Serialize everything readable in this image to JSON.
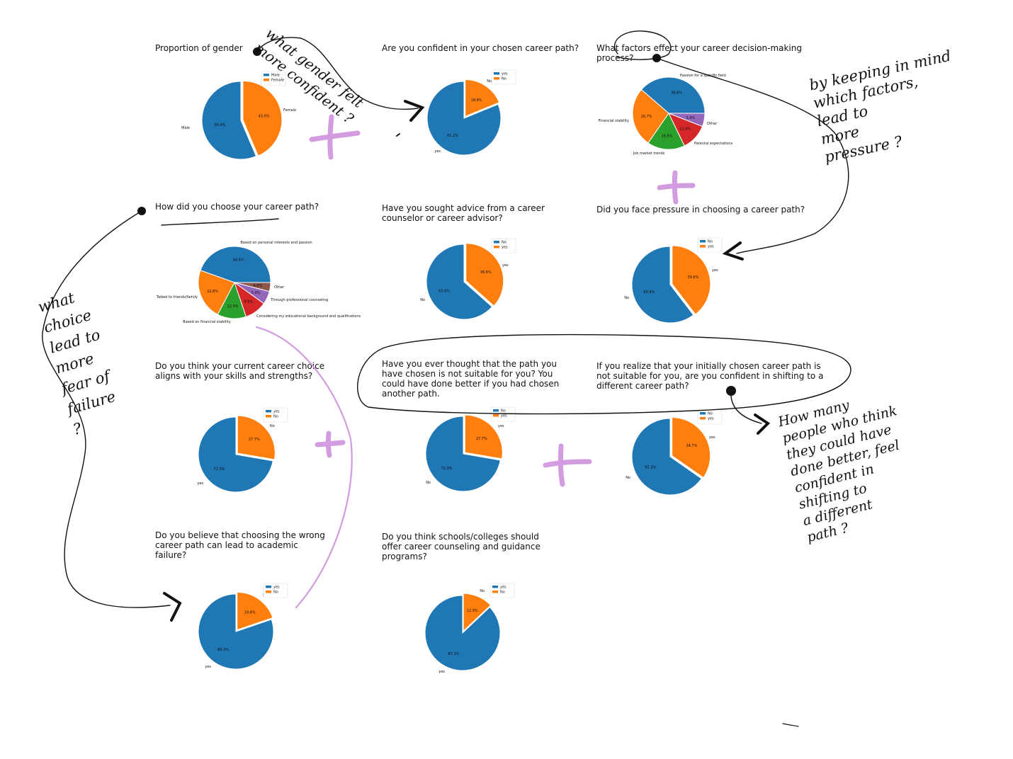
{
  "colors": {
    "blue": "#1f77b4",
    "orange": "#ff7f0e",
    "green": "#2ca02c",
    "red": "#d62728",
    "purple": "#9467bd",
    "brown": "#8c564b",
    "annotation_purple": "#d39be0",
    "ink": "#111111"
  },
  "notes": {
    "gender_confidence": "what gender felt more confident ?",
    "pressure_factors": "by keeping in mind\nwhich factors,\nlead to\nmore\npressure ?",
    "fear_of_failure": "what\nchoice\nlead to\nmore\nfear of\nfailure\n?",
    "shifting": "How many\npeople who think\nthey could have\ndone better, feel\nconfident in\nshifting to\na different\npath ?"
  },
  "chart_data": [
    {
      "id": "gender",
      "type": "pie",
      "title": "Proportion of gender",
      "legend": [
        "Male",
        "Female"
      ],
      "slices": [
        {
          "label": "Male",
          "value": 56.4,
          "pct": "56.4%",
          "color": "#1f77b4"
        },
        {
          "label": "Female",
          "value": 43.6,
          "pct": "43.6%",
          "color": "#ff7f0e"
        }
      ]
    },
    {
      "id": "confident",
      "type": "pie",
      "title": "Are you confident in your chosen career path?",
      "legend": [
        "yes",
        "No"
      ],
      "slices": [
        {
          "label": "yes",
          "value": 81.2,
          "pct": "81.2%",
          "color": "#1f77b4"
        },
        {
          "label": "No",
          "value": 18.8,
          "pct": "18.8%",
          "color": "#ff7f0e"
        }
      ]
    },
    {
      "id": "factors",
      "type": "pie",
      "title": "What factors effect your career decision-making process?",
      "legend": [],
      "slices": [
        {
          "label": "Passion for a specific field",
          "value": 38.6,
          "pct": "38.6%",
          "color": "#1f77b4"
        },
        {
          "label": "Financial stability",
          "value": 26.7,
          "pct": "26.7%",
          "color": "#ff7f0e"
        },
        {
          "label": "Job market trends",
          "value": 16.8,
          "pct": "16.8%",
          "color": "#2ca02c"
        },
        {
          "label": "Parental expectations",
          "value": 11.9,
          "pct": "11.9%",
          "color": "#d62728"
        },
        {
          "label": "Other",
          "value": 5.9,
          "pct": "5.9%",
          "color": "#9467bd"
        }
      ]
    },
    {
      "id": "how_choose",
      "type": "pie",
      "title": "How did you choose your career path?",
      "legend": [],
      "slices": [
        {
          "label": "Based on personal interests and passion",
          "value": 44.6,
          "pct": "44.6%",
          "color": "#1f77b4"
        },
        {
          "label": "Talked to friends/family",
          "value": 22.8,
          "pct": "22.8%",
          "color": "#ff7f0e"
        },
        {
          "label": "Based on financial stability",
          "value": 12.9,
          "pct": "12.9%",
          "color": "#2ca02c"
        },
        {
          "label": "Considering my educational background and qualifications",
          "value": 9.9,
          "pct": "9.9%",
          "color": "#d62728"
        },
        {
          "label": "Through professional counseling",
          "value": 5.9,
          "pct": "5.9%",
          "color": "#9467bd"
        },
        {
          "label": "Other",
          "value": 4.0,
          "pct": "4.0%",
          "color": "#8c564b"
        }
      ]
    },
    {
      "id": "advice",
      "type": "pie",
      "title": "Have you sought advice from a career counselor or career advisor?",
      "legend": [
        "No",
        "yes"
      ],
      "slices": [
        {
          "label": "No",
          "value": 63.4,
          "pct": "63.4%",
          "color": "#1f77b4"
        },
        {
          "label": "yes",
          "value": 36.6,
          "pct": "36.6%",
          "color": "#ff7f0e"
        }
      ]
    },
    {
      "id": "pressure",
      "type": "pie",
      "title": "Did you face pressure in choosing a career path?",
      "legend": [
        "No",
        "yes"
      ],
      "slices": [
        {
          "label": "No",
          "value": 60.4,
          "pct": "60.4%",
          "color": "#1f77b4"
        },
        {
          "label": "yes",
          "value": 39.6,
          "pct": "39.6%",
          "color": "#ff7f0e"
        }
      ]
    },
    {
      "id": "aligns",
      "type": "pie",
      "title": "Do you think your current career choice aligns with your skills and strengths?",
      "legend": [
        "yes",
        "No"
      ],
      "slices": [
        {
          "label": "yes",
          "value": 72.3,
          "pct": "72.3%",
          "color": "#1f77b4"
        },
        {
          "label": "No",
          "value": 27.7,
          "pct": "27.7%",
          "color": "#ff7f0e"
        }
      ]
    },
    {
      "id": "not_suitable",
      "type": "pie",
      "title": "Have you ever thought that the path you have chosen is not suitable for you? You could have done better if you had chosen another path.",
      "legend": [
        "No",
        "yes"
      ],
      "slices": [
        {
          "label": "No",
          "value": 72.3,
          "pct": "72.3%",
          "color": "#1f77b4"
        },
        {
          "label": "yes",
          "value": 27.7,
          "pct": "27.7%",
          "color": "#ff7f0e"
        }
      ]
    },
    {
      "id": "shifting",
      "type": "pie",
      "title": "If you realize that your initially chosen career path is not suitable for you, are you confident in shifting to a different career path?",
      "legend": [
        "No",
        "yes"
      ],
      "slices": [
        {
          "label": "No",
          "value": 65.3,
          "pct": "65.3%",
          "color": "#1f77b4"
        },
        {
          "label": "yes",
          "value": 34.7,
          "pct": "34.7%",
          "color": "#ff7f0e"
        }
      ]
    },
    {
      "id": "academic_failure",
      "type": "pie",
      "title": "Do you believe that choosing the wrong career path can lead to academic failure?",
      "legend": [
        "yes",
        "No"
      ],
      "slices": [
        {
          "label": "yes",
          "value": 80.2,
          "pct": "80.2%",
          "color": "#1f77b4"
        },
        {
          "label": "No",
          "value": 19.8,
          "pct": "19.8%",
          "color": "#ff7f0e"
        }
      ]
    },
    {
      "id": "schools",
      "type": "pie",
      "title": "Do you think schools/colleges should offer career counseling and guidance programs?",
      "legend": [
        "yes",
        "No"
      ],
      "slices": [
        {
          "label": "yes",
          "value": 87.1,
          "pct": "87.1%",
          "color": "#1f77b4"
        },
        {
          "label": "No",
          "value": 12.9,
          "pct": "12.9%",
          "color": "#ff7f0e"
        }
      ]
    }
  ]
}
